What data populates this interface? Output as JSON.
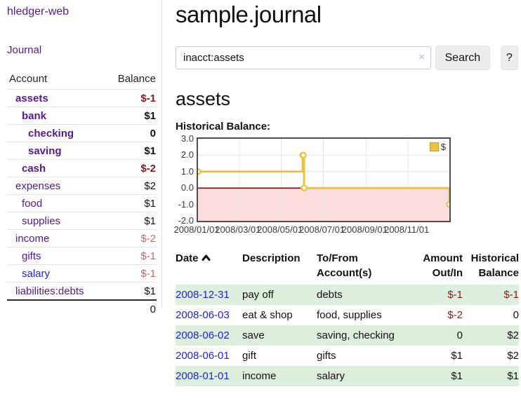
{
  "app": {
    "title": "hledger-web",
    "nav_journal": "Journal"
  },
  "colors": {
    "link_purple": "#551a8b",
    "link_blue": "#2222dd",
    "negative_strong": "#8b1a1a",
    "negative_soft": "#bb6a6c",
    "row_green": "#ddeedd",
    "series_gold": "#edc240",
    "zero_line": "#8b0000",
    "negative_fill": "#fbdcdc"
  },
  "sidebar": {
    "header": {
      "account": "Account",
      "balance": "Balance"
    },
    "accounts": [
      {
        "name": "assets",
        "balance": "$-1"
      },
      {
        "name": "bank",
        "balance": "$1"
      },
      {
        "name": "checking",
        "balance": "0"
      },
      {
        "name": "saving",
        "balance": "$1"
      },
      {
        "name": "cash",
        "balance": "$-2"
      },
      {
        "name": "expenses",
        "balance": "$2"
      },
      {
        "name": "food",
        "balance": "$1"
      },
      {
        "name": "supplies",
        "balance": "$1"
      },
      {
        "name": "income",
        "balance": "$-2"
      },
      {
        "name": "gifts",
        "balance": "$-1"
      },
      {
        "name": "salary",
        "balance": "$-1"
      },
      {
        "name": "liabilities:debts",
        "balance": "$1"
      }
    ],
    "total": "0"
  },
  "main": {
    "title": "sample.journal",
    "search": {
      "value": "inacct:assets",
      "clear": "×",
      "button": "Search",
      "help": "?"
    },
    "account_heading": "assets",
    "chart_label": "Historical Balance:"
  },
  "chart_data": {
    "type": "line",
    "title": "Historical Balance",
    "step": true,
    "grid": true,
    "series": [
      {
        "name": "$",
        "color": "#edc240",
        "x": [
          "2008-01-01",
          "2008-06-01",
          "2008-06-02",
          "2008-06-03",
          "2008-12-31"
        ],
        "y": [
          1,
          2,
          2,
          0,
          -1
        ]
      }
    ],
    "x_range": [
      "2008-01-01",
      "2008-12-31"
    ],
    "ylim": [
      -2,
      3
    ],
    "y_ticks": [
      {
        "label": "3.0",
        "value": 3
      },
      {
        "label": "2.0",
        "value": 2
      },
      {
        "label": "1.0",
        "value": 1
      },
      {
        "label": "0.0",
        "value": 0
      },
      {
        "label": "-1.0",
        "value": -1
      },
      {
        "label": "-2.0",
        "value": -2
      }
    ],
    "x_ticks": [
      {
        "label": "2008/01/01",
        "date": "2008-01-01"
      },
      {
        "label": "2008/03/01",
        "date": "2008-03-01"
      },
      {
        "label": "2008/05/01",
        "date": "2008-05-01"
      },
      {
        "label": "2008/07/01",
        "date": "2008-07-01"
      },
      {
        "label": "2008/09/01",
        "date": "2008-09-01"
      },
      {
        "label": "2008/11/01",
        "date": "2008-11-01"
      }
    ],
    "legend": {
      "position": "top-right",
      "label": "$"
    },
    "zero_line_color": "#8b0000",
    "negative_fill": "#fbdcdc"
  },
  "table": {
    "headers": {
      "date": "Date",
      "description": "Description",
      "account": "To/From Account(s)",
      "amount": "Amount Out/In",
      "historical": "Historical Balance"
    },
    "rows": [
      {
        "date": "2008-12-31",
        "description": "pay off",
        "account": "debts",
        "amount": "$-1",
        "historical": "$-1"
      },
      {
        "date": "2008-06-03",
        "description": "eat & shop",
        "account": "food, supplies",
        "amount": "$-2",
        "historical": "0"
      },
      {
        "date": "2008-06-02",
        "description": "save",
        "account": "saving, checking",
        "amount": "0",
        "historical": "$2"
      },
      {
        "date": "2008-06-01",
        "description": "gift",
        "account": "gifts",
        "amount": "$1",
        "historical": "$2"
      },
      {
        "date": "2008-01-01",
        "description": "income",
        "account": "salary",
        "amount": "$1",
        "historical": "$1"
      }
    ]
  }
}
